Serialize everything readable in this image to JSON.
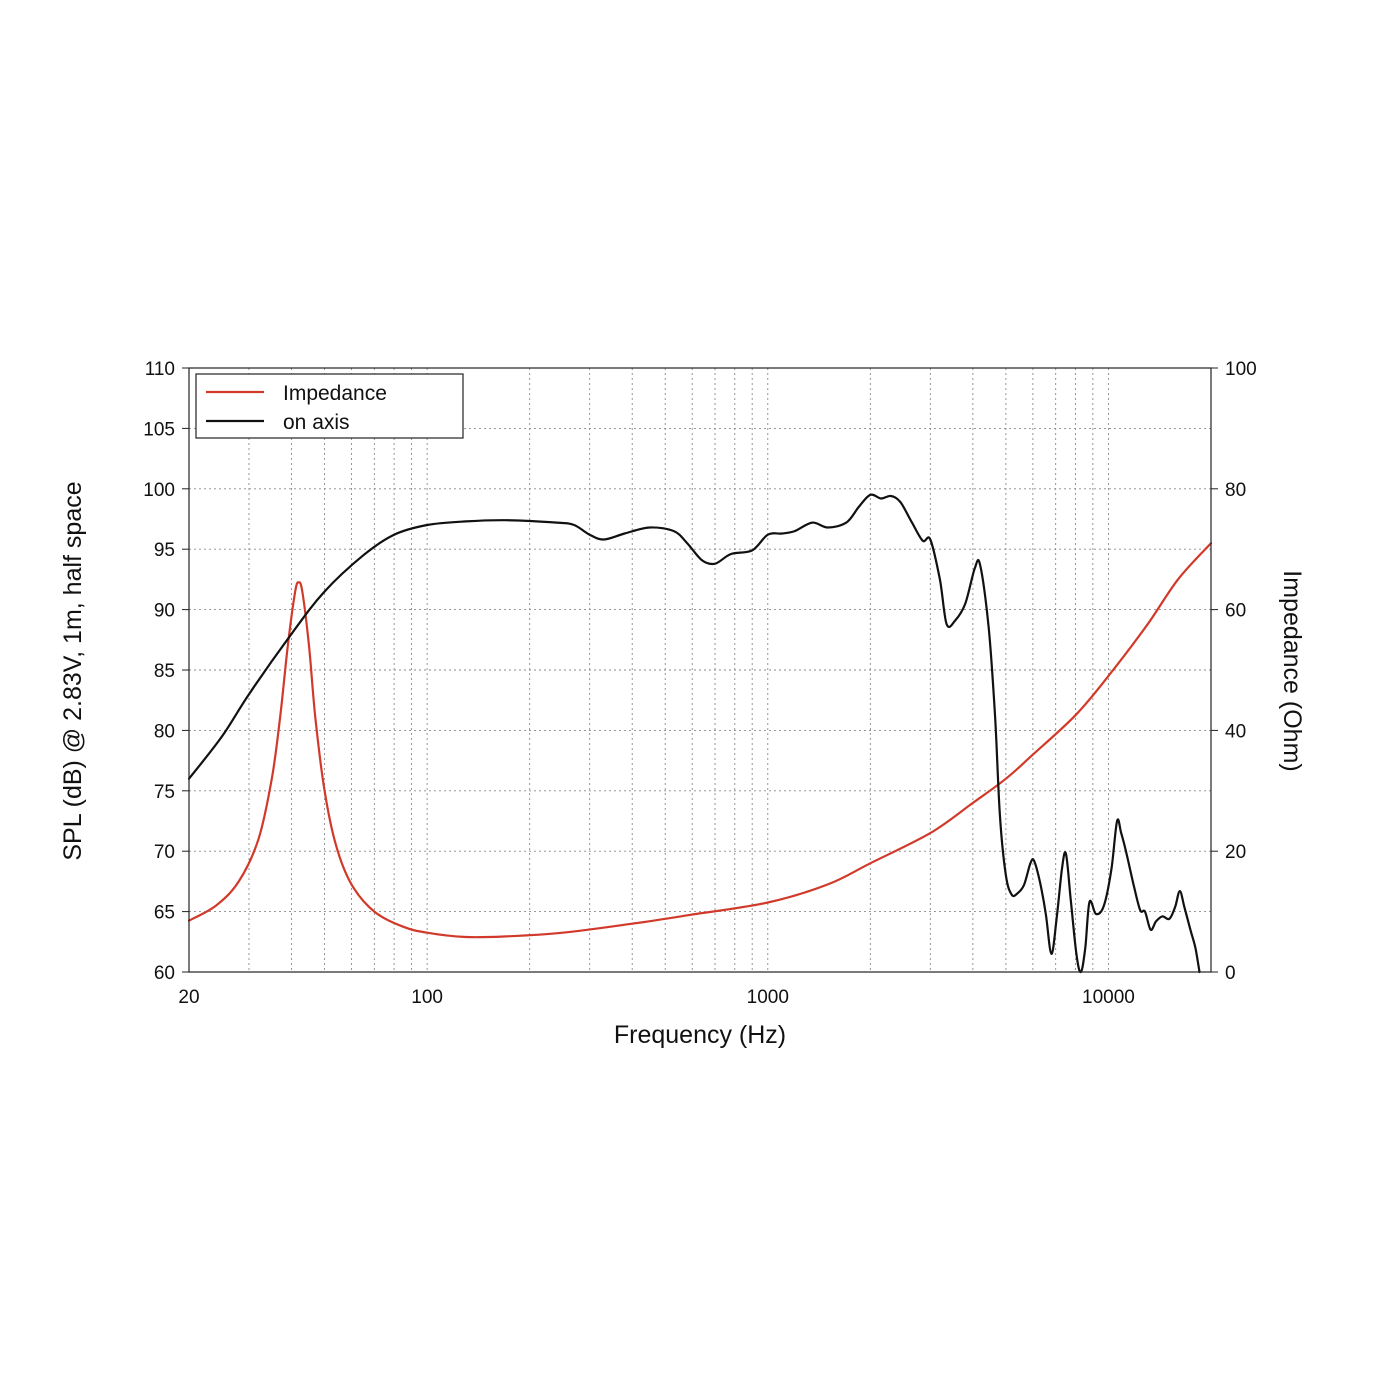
{
  "chart_data": {
    "type": "line",
    "xlabel": "Frequency (Hz)",
    "ylabel_left": "SPL (dB) @ 2.83V, 1m, half space",
    "ylabel_right": "Impedance (Ohm)",
    "x_scale": "log",
    "xlim": [
      20,
      20000
    ],
    "ylim_left": [
      60,
      110
    ],
    "ylim_right": [
      0,
      100
    ],
    "x_ticks": [
      {
        "value": 20,
        "label": "20"
      },
      {
        "value": 100,
        "label": "100"
      },
      {
        "value": 1000,
        "label": "1000"
      },
      {
        "value": 10000,
        "label": "10000"
      }
    ],
    "y_ticks_left": [
      {
        "value": 60,
        "label": "60"
      },
      {
        "value": 65,
        "label": "65"
      },
      {
        "value": 70,
        "label": "70"
      },
      {
        "value": 75,
        "label": "75"
      },
      {
        "value": 80,
        "label": "80"
      },
      {
        "value": 85,
        "label": "85"
      },
      {
        "value": 90,
        "label": "90"
      },
      {
        "value": 95,
        "label": "95"
      },
      {
        "value": 100,
        "label": "100"
      },
      {
        "value": 105,
        "label": "105"
      },
      {
        "value": 110,
        "label": "110"
      }
    ],
    "y_ticks_right": [
      {
        "value": 0,
        "label": "0"
      },
      {
        "value": 20,
        "label": "20"
      },
      {
        "value": 40,
        "label": "40"
      },
      {
        "value": 60,
        "label": "60"
      },
      {
        "value": 80,
        "label": "80"
      },
      {
        "value": 100,
        "label": "100"
      }
    ],
    "grid": true,
    "legend_position": "top-left",
    "series": [
      {
        "name": "Impedance",
        "axis": "right",
        "color": "#d13a2a",
        "points": [
          [
            20,
            8.5
          ],
          [
            24,
            11
          ],
          [
            28,
            15
          ],
          [
            32,
            22
          ],
          [
            35,
            32
          ],
          [
            37,
            42
          ],
          [
            39,
            54
          ],
          [
            41,
            63
          ],
          [
            42,
            64.5
          ],
          [
            43,
            63
          ],
          [
            45,
            54
          ],
          [
            47,
            42
          ],
          [
            50,
            30
          ],
          [
            54,
            21
          ],
          [
            60,
            14.5
          ],
          [
            70,
            10
          ],
          [
            85,
            7.5
          ],
          [
            100,
            6.5
          ],
          [
            130,
            5.8
          ],
          [
            170,
            5.9
          ],
          [
            250,
            6.5
          ],
          [
            400,
            8
          ],
          [
            600,
            9.5
          ],
          [
            1000,
            11.5
          ],
          [
            1500,
            14.5
          ],
          [
            2000,
            18
          ],
          [
            3000,
            23
          ],
          [
            4000,
            28
          ],
          [
            5000,
            32
          ],
          [
            6000,
            36
          ],
          [
            8000,
            42.5
          ],
          [
            10000,
            49
          ],
          [
            13000,
            57.5
          ],
          [
            16000,
            65
          ],
          [
            20000,
            71
          ]
        ]
      },
      {
        "name": "on axis",
        "axis": "left",
        "color": "#111111",
        "points": [
          [
            20,
            76
          ],
          [
            25,
            79.5
          ],
          [
            30,
            83
          ],
          [
            40,
            88
          ],
          [
            50,
            91.5
          ],
          [
            65,
            94.5
          ],
          [
            80,
            96.2
          ],
          [
            100,
            97
          ],
          [
            130,
            97.3
          ],
          [
            170,
            97.4
          ],
          [
            240,
            97.2
          ],
          [
            270,
            97
          ],
          [
            300,
            96.2
          ],
          [
            330,
            95.8
          ],
          [
            380,
            96.3
          ],
          [
            450,
            96.8
          ],
          [
            530,
            96.5
          ],
          [
            580,
            95.5
          ],
          [
            640,
            94.1
          ],
          [
            700,
            93.8
          ],
          [
            780,
            94.6
          ],
          [
            900,
            94.9
          ],
          [
            1000,
            96.2
          ],
          [
            1100,
            96.3
          ],
          [
            1200,
            96.5
          ],
          [
            1350,
            97.2
          ],
          [
            1500,
            96.8
          ],
          [
            1700,
            97.2
          ],
          [
            1850,
            98.5
          ],
          [
            2000,
            99.5
          ],
          [
            2150,
            99.2
          ],
          [
            2300,
            99.4
          ],
          [
            2450,
            98.9
          ],
          [
            2650,
            97.2
          ],
          [
            2850,
            95.7
          ],
          [
            3000,
            95.8
          ],
          [
            3200,
            92.5
          ],
          [
            3350,
            88.8
          ],
          [
            3550,
            89.1
          ],
          [
            3800,
            90.5
          ],
          [
            4050,
            93.4
          ],
          [
            4200,
            93.7
          ],
          [
            4450,
            88.5
          ],
          [
            4650,
            81
          ],
          [
            4800,
            73
          ],
          [
            5000,
            68
          ],
          [
            5200,
            66.4
          ],
          [
            5400,
            66.5
          ],
          [
            5650,
            67.2
          ],
          [
            5900,
            69
          ],
          [
            6050,
            69.2
          ],
          [
            6300,
            67.4
          ],
          [
            6550,
            64.8
          ],
          [
            6800,
            61.5
          ],
          [
            7050,
            64.5
          ],
          [
            7300,
            68.5
          ],
          [
            7500,
            69.8
          ],
          [
            7750,
            66
          ],
          [
            8050,
            61.5
          ],
          [
            8300,
            60
          ],
          [
            8550,
            62
          ],
          [
            8800,
            65.8
          ],
          [
            9200,
            64.8
          ],
          [
            9700,
            65.5
          ],
          [
            10200,
            68.5
          ],
          [
            10600,
            72.5
          ],
          [
            10900,
            71.5
          ],
          [
            11300,
            69.8
          ],
          [
            11900,
            67
          ],
          [
            12400,
            65.1
          ],
          [
            12800,
            65
          ],
          [
            13300,
            63.5
          ],
          [
            13800,
            64.2
          ],
          [
            14400,
            64.6
          ],
          [
            15100,
            64.4
          ],
          [
            15700,
            65.4
          ],
          [
            16200,
            66.7
          ],
          [
            16700,
            65.4
          ],
          [
            17400,
            63.5
          ],
          [
            18000,
            62
          ],
          [
            18500,
            60
          ]
        ]
      }
    ]
  }
}
